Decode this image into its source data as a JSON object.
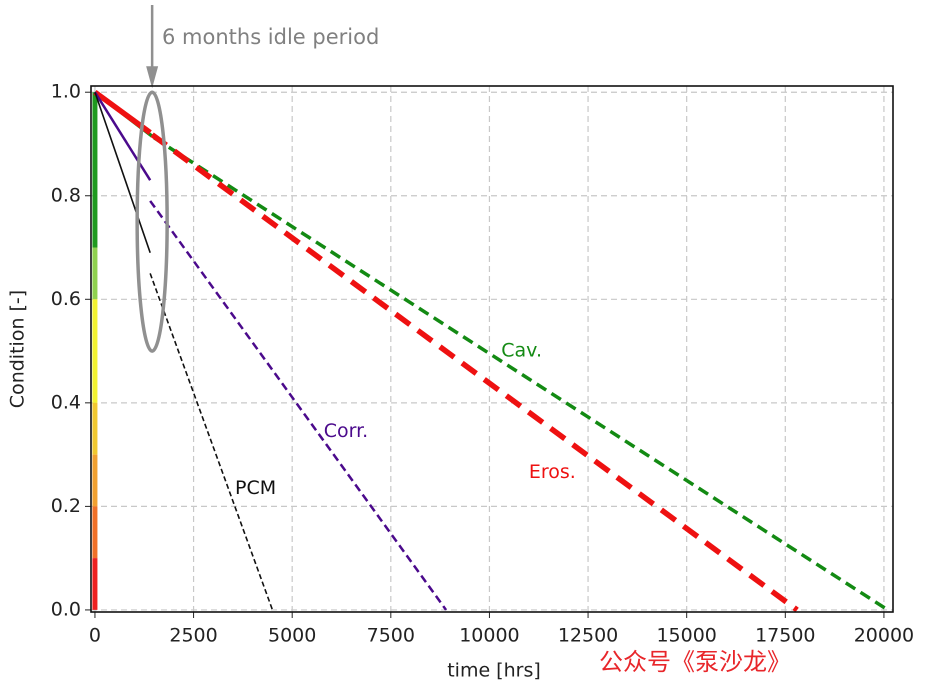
{
  "chart_data": {
    "type": "line",
    "xlabel": "time [hrs]",
    "ylabel": "Condition [-]",
    "xlim": [
      -100,
      20230
    ],
    "ylim": [
      -0.004,
      1.012
    ],
    "xticks": [
      0,
      2500,
      5000,
      7500,
      10000,
      12500,
      15000,
      17500,
      20000
    ],
    "yticks": [
      {
        "value": 0,
        "label": "0.0"
      },
      {
        "value": 0.2,
        "label": "0.2"
      },
      {
        "value": 0.4,
        "label": "0.4"
      },
      {
        "value": 0.6,
        "label": "0.6"
      },
      {
        "value": 0.8,
        "label": "0.8"
      },
      {
        "value": 1,
        "label": "1.0"
      }
    ],
    "grid": true,
    "series": [
      {
        "name": "Cav.",
        "color": "#138a13",
        "width": 3.5,
        "linestyles": [
          "solid",
          "dashed"
        ],
        "x": [
          0,
          1450,
          1450,
          1500,
          20100
        ],
        "values": [
          1,
          0.915,
          null,
          0.912,
          0
        ],
        "label_at": [
          10300,
          0.5
        ]
      },
      {
        "name": "Eros.",
        "color": "#ee1111",
        "width": 5.5,
        "linestyles": [
          "solid",
          "dashed"
        ],
        "x": [
          0,
          1400,
          1400,
          1450,
          17800
        ],
        "values": [
          1,
          0.922,
          null,
          0.918,
          0
        ],
        "label_at": [
          11000,
          0.265
        ]
      },
      {
        "name": "Corr.",
        "color": "#4b0a8c",
        "width": 2.5,
        "linestyles": [
          "solid",
          "dashed"
        ],
        "x": [
          0,
          1400,
          1400,
          1400,
          8900
        ],
        "values": [
          1,
          0.83,
          null,
          0.79,
          0
        ],
        "label_at": [
          5800,
          0.345
        ]
      },
      {
        "name": "PCM",
        "color": "#111111",
        "width": 1.6,
        "linestyles": [
          "solid",
          "dashed"
        ],
        "x": [
          0,
          1400,
          1400,
          1400,
          4500
        ],
        "values": [
          1,
          0.69,
          null,
          0.65,
          0
        ],
        "label_at": [
          3550,
          0.235
        ]
      }
    ],
    "condition_bands": [
      {
        "from": 1.0,
        "to": 0.7,
        "color": "#1f9a1f"
      },
      {
        "from": 0.7,
        "to": 0.6,
        "color": "#8fd14f"
      },
      {
        "from": 0.6,
        "to": 0.4,
        "color": "#f2f230"
      },
      {
        "from": 0.4,
        "to": 0.3,
        "color": "#f0c830"
      },
      {
        "from": 0.3,
        "to": 0.2,
        "color": "#f0a030"
      },
      {
        "from": 0.2,
        "to": 0.1,
        "color": "#f07028"
      },
      {
        "from": 0.1,
        "to": 0.0,
        "color": "#ee2020"
      }
    ],
    "annotation": {
      "text": "6 months idle period",
      "x": 1450,
      "y": 1.0,
      "ellipse": {
        "cx": 1450,
        "cy": 0.75,
        "rx": 380,
        "ry": 0.25
      }
    },
    "watermark": "公众号《泵沙龙》"
  }
}
